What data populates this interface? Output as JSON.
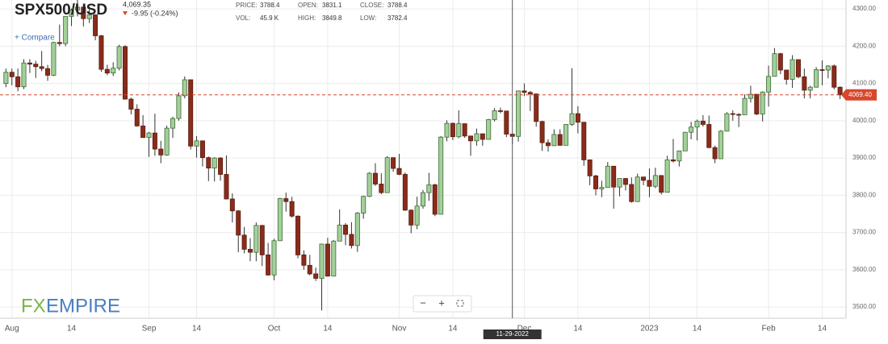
{
  "header": {
    "price": "4,069.35",
    "change": "-9.95 (-0.24%)",
    "compare": "+ Compare",
    "stats": [
      {
        "label": "PRICE:",
        "value": "3788.4"
      },
      {
        "label": "OPEN:",
        "value": "3831.1"
      },
      {
        "label": "CLOSE:",
        "value": "3788.4"
      },
      {
        "label": "VOL:",
        "value": "45.9 K"
      },
      {
        "label": "HIGH:",
        "value": "3849.8"
      },
      {
        "label": "LOW:",
        "value": "3782.4"
      }
    ],
    "logo": [
      "FX",
      "EMPIRE"
    ],
    "toolbar": [
      "−",
      "+"
    ]
  },
  "chart_data": {
    "type": "candlestick",
    "title": "SPX500/USD",
    "colors": {
      "up": "#a3d09a",
      "down": "#8a2c1b"
    },
    "candles": {
      "open": [
        4100,
        4130,
        4118,
        4091,
        4155,
        4152,
        4145,
        4140,
        4122,
        4210,
        4207,
        4280,
        4297,
        4305,
        4274,
        4284,
        4228,
        4138,
        4128,
        4141,
        4199,
        4058,
        4031,
        3986,
        3955,
        3967,
        3924,
        3908,
        3980,
        4006,
        4067,
        4110,
        3932,
        3946,
        3901,
        3873,
        3900,
        3856,
        3790,
        3758,
        3693,
        3655,
        3647,
        3719,
        3640,
        3586,
        3678,
        3791,
        3783,
        3744,
        3640,
        3612,
        3589,
        3577,
        3669,
        3583,
        3677,
        3720,
        3695,
        3665,
        3752,
        3797,
        3859,
        3830,
        3807,
        3901,
        3872,
        3856,
        3760,
        3720,
        3771,
        3807,
        3828,
        3749,
        3956,
        3993,
        3957,
        3992,
        3959,
        3946,
        3965,
        3950,
        4003,
        4027,
        4026,
        3964,
        3958,
        4080,
        4076,
        4072,
        3998,
        3941,
        3933,
        3963,
        3934,
        3990,
        4019,
        3996,
        3895,
        3852,
        3817,
        3821,
        3878,
        3822,
        3845,
        3829,
        3783,
        3849,
        3840,
        3824,
        3853,
        3808,
        3895,
        3892,
        3919,
        3969,
        3983,
        3999,
        3990,
        3928,
        3898,
        3972,
        4019,
        4017,
        4016,
        4060,
        4071,
        4018,
        4077,
        4119,
        4180,
        4136,
        4111,
        4164,
        4118,
        4082,
        4090,
        4137,
        4136,
        4147,
        4090
      ],
      "high": [
        4140,
        4140,
        4140,
        4165,
        4165,
        4161,
        4187,
        4150,
        4212,
        4258,
        4281,
        4301,
        4325,
        4303,
        4298,
        4286,
        4230,
        4150,
        4157,
        4204,
        4203,
        4062,
        4044,
        4015,
        3970,
        4019,
        3946,
        3987,
        4011,
        4076,
        4119,
        4110,
        3959,
        3947,
        3904,
        3902,
        3902,
        3907,
        3805,
        3760,
        3715,
        3685,
        3727,
        3720,
        3672,
        3683,
        3793,
        3807,
        3796,
        3746,
        3652,
        3640,
        3606,
        3670,
        3686,
        3680,
        3762,
        3725,
        3728,
        3755,
        3799,
        3862,
        3886,
        3859,
        3905,
        3893,
        3911,
        3861,
        3762,
        3796,
        3814,
        3860,
        3831,
        3959,
        4001,
        3995,
        4028,
        3983,
        3954,
        3979,
        3962,
        4005,
        4034,
        4035,
        4013,
        3966,
        4080,
        4100,
        4080,
        4052,
        4000,
        3950,
        3977,
        3977,
        3991,
        4141,
        4039,
        3959,
        3890,
        3855,
        3839,
        3889,
        3876,
        3845,
        3846,
        3848,
        3858,
        3846,
        3872,
        3874,
        3836,
        3906,
        3951,
        3920,
        3970,
        3997,
        4003,
        4015,
        4014,
        3933,
        3975,
        4023,
        4028,
        4020,
        4071,
        4094,
        4063,
        4079,
        4148,
        4195,
        4182,
        4134,
        4176,
        4160,
        4140,
        4094,
        4144,
        4162,
        4149,
        4151,
        4092
      ],
      "low": [
        4090,
        4095,
        4079,
        4085,
        4128,
        4115,
        4133,
        4107,
        4120,
        4200,
        4200,
        4254,
        4280,
        4253,
        4262,
        4216,
        4131,
        4122,
        4120,
        4135,
        4057,
        4017,
        3984,
        3954,
        3903,
        3906,
        3886,
        3906,
        3954,
        4000,
        4060,
        3923,
        3901,
        3877,
        3838,
        3837,
        3839,
        3789,
        3727,
        3647,
        3644,
        3623,
        3623,
        3610,
        3584,
        3572,
        3678,
        3756,
        3740,
        3631,
        3600,
        3585,
        3570,
        3491,
        3582,
        3583,
        3680,
        3666,
        3657,
        3648,
        3737,
        3795,
        3825,
        3803,
        3808,
        3863,
        3854,
        3758,
        3698,
        3709,
        3764,
        3785,
        3744,
        3749,
        3945,
        3948,
        3953,
        3954,
        3906,
        3933,
        3933,
        3956,
        3998,
        4020,
        3956,
        3937,
        3944,
        4066,
        4026,
        3984,
        3919,
        3917,
        3935,
        3933,
        3936,
        3986,
        3966,
        3879,
        3827,
        3800,
        3795,
        3821,
        3764,
        3797,
        3813,
        3780,
        3782,
        3827,
        3795,
        3819,
        3802,
        3809,
        3888,
        3877,
        3925,
        3950,
        3947,
        3984,
        3926,
        3886,
        3901,
        3973,
        4000,
        3983,
        4030,
        4049,
        4015,
        3998,
        4038,
        4142,
        4125,
        4097,
        4088,
        4114,
        4060,
        4060,
        4089,
        4095,
        4114,
        4084,
        4058
      ],
      "close": [
        4130,
        4118,
        4091,
        4155,
        4152,
        4145,
        4140,
        4122,
        4210,
        4207,
        4280,
        4297,
        4305,
        4274,
        4284,
        4228,
        4138,
        4128,
        4141,
        4199,
        4058,
        4031,
        3986,
        3955,
        3967,
        3924,
        3908,
        3980,
        4006,
        4067,
        4110,
        3932,
        3946,
        3901,
        3873,
        3900,
        3856,
        3790,
        3758,
        3693,
        3655,
        3647,
        3719,
        3640,
        3586,
        3678,
        3791,
        3783,
        3744,
        3640,
        3612,
        3589,
        3577,
        3669,
        3583,
        3677,
        3720,
        3695,
        3665,
        3752,
        3797,
        3859,
        3830,
        3807,
        3901,
        3872,
        3856,
        3760,
        3720,
        3771,
        3807,
        3828,
        3749,
        3956,
        3993,
        3957,
        3992,
        3959,
        3946,
        3965,
        3950,
        4003,
        4027,
        4026,
        3964,
        3958,
        4080,
        4076,
        4072,
        3998,
        3941,
        3933,
        3963,
        3934,
        3990,
        4019,
        3996,
        3895,
        3852,
        3817,
        3821,
        3878,
        3822,
        3845,
        3829,
        3783,
        3849,
        3840,
        3824,
        3853,
        3808,
        3895,
        3892,
        3919,
        3969,
        3983,
        3999,
        3990,
        3928,
        3898,
        3972,
        4019,
        4017,
        4016,
        4060,
        4071,
        4018,
        4077,
        4119,
        4180,
        4136,
        4111,
        4164,
        4118,
        4082,
        4090,
        4137,
        4136,
        4147,
        4090,
        4069.4
      ]
    },
    "xlim": [
      -1,
      141
    ],
    "xticks": [
      {
        "value": 1,
        "label": "Aug"
      },
      {
        "value": 11,
        "label": "14"
      },
      {
        "value": 24,
        "label": "Sep"
      },
      {
        "value": 32,
        "label": "14"
      },
      {
        "value": 45,
        "label": "Oct"
      },
      {
        "value": 54,
        "label": "14"
      },
      {
        "value": 66,
        "label": "Nov"
      },
      {
        "value": 75,
        "label": "14"
      },
      {
        "value": 87,
        "label": "Dec"
      },
      {
        "value": 96,
        "label": "14"
      },
      {
        "value": 108,
        "label": "2023"
      },
      {
        "value": 116,
        "label": "14"
      },
      {
        "value": 128,
        "label": "Feb"
      },
      {
        "value": 137,
        "label": "14"
      }
    ],
    "ylim": [
      3470,
      4324
    ],
    "yticks": [
      {
        "value": 3500,
        "label": "3500.00"
      },
      {
        "value": 3600,
        "label": "3600.00"
      },
      {
        "value": 3700,
        "label": "3700.00"
      },
      {
        "value": 3800,
        "label": "3800.00"
      },
      {
        "value": 3900,
        "label": "3900.00"
      },
      {
        "value": 4000,
        "label": "4000.00"
      },
      {
        "value": 4100,
        "label": "4100.00"
      },
      {
        "value": 4200,
        "label": "4200.00"
      },
      {
        "value": 4300,
        "label": "4300.00"
      }
    ],
    "last_price": {
      "value": 4069.4,
      "label": "4069.40",
      "color": "#d9472b"
    },
    "crosshair": {
      "value": 85,
      "label": "11-29-2022"
    },
    "grid": true
  }
}
